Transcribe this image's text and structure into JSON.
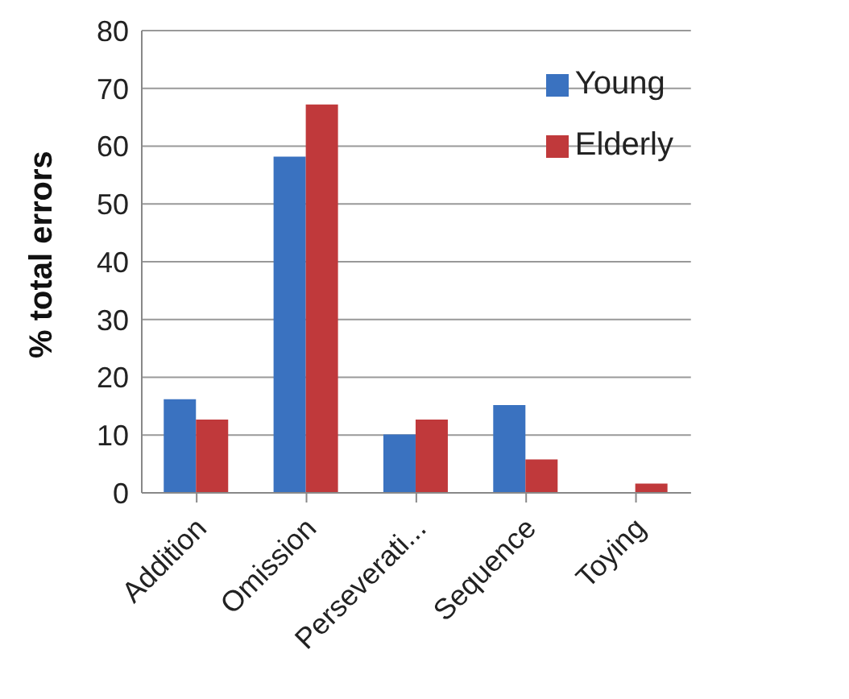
{
  "chart_data": {
    "type": "bar",
    "ylabel": "% total errors",
    "categories": [
      "Addition",
      "Omission",
      "Perseverati...",
      "Sequence",
      "Toying"
    ],
    "series": [
      {
        "name": "Young",
        "color": "#3a72c0",
        "values": [
          16.2,
          58.2,
          10.1,
          15.2,
          0
        ]
      },
      {
        "name": "Elderly",
        "color": "#c0393b",
        "values": [
          12.7,
          67.2,
          12.7,
          5.8,
          1.6
        ]
      }
    ],
    "ylim": [
      0,
      80
    ],
    "yticks": [
      0,
      10,
      20,
      30,
      40,
      50,
      60,
      70,
      80
    ],
    "grid": "y",
    "legend": "top right"
  }
}
